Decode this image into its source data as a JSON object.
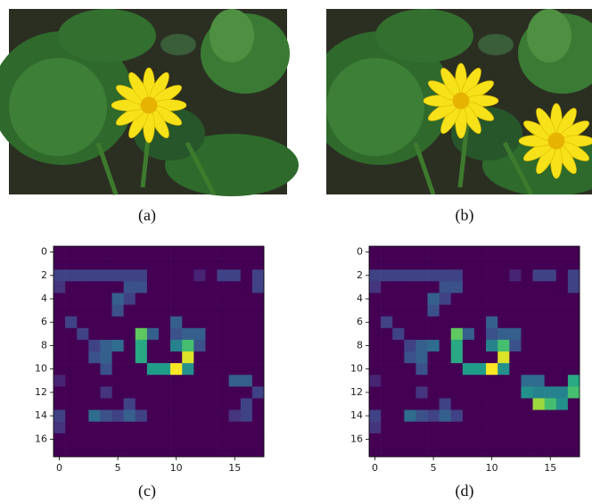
{
  "panels": [
    {
      "caption": "(a)"
    },
    {
      "caption": "(b)"
    },
    {
      "caption": "(c)"
    },
    {
      "caption": "(d)"
    }
  ],
  "chart_data": [
    {
      "type": "heatmap",
      "xlim": [
        -0.5,
        17.5
      ],
      "ylim": [
        17.5,
        -0.5
      ],
      "xticks": [
        0,
        5,
        10,
        15
      ],
      "yticks": [
        0,
        2,
        4,
        6,
        8,
        10,
        12,
        14,
        16
      ],
      "colormap": "viridis",
      "z": [
        [
          0,
          0,
          0,
          0,
          0,
          0,
          0,
          0,
          0,
          0,
          0,
          0,
          0,
          0,
          0,
          0,
          0,
          0
        ],
        [
          0,
          0,
          0,
          0,
          0,
          0,
          0,
          0,
          0,
          0,
          0,
          0,
          0,
          0,
          0,
          0,
          0,
          0
        ],
        [
          0.2,
          0.2,
          0.2,
          0.2,
          0.2,
          0.2,
          0.2,
          0.2,
          0,
          0,
          0,
          0,
          0.1,
          0,
          0.2,
          0.2,
          0,
          0.2
        ],
        [
          0.15,
          0,
          0,
          0,
          0,
          0,
          0.25,
          0.25,
          0,
          0,
          0,
          0,
          0,
          0,
          0,
          0,
          0,
          0.2
        ],
        [
          0,
          0,
          0,
          0,
          0,
          0.3,
          0.2,
          0,
          0,
          0,
          0,
          0,
          0,
          0,
          0,
          0,
          0,
          0
        ],
        [
          0,
          0,
          0,
          0,
          0,
          0.25,
          0,
          0,
          0,
          0,
          0,
          0,
          0,
          0,
          0,
          0,
          0,
          0
        ],
        [
          0,
          0.2,
          0,
          0,
          0,
          0,
          0,
          0,
          0,
          0,
          0.3,
          0,
          0,
          0,
          0,
          0,
          0,
          0
        ],
        [
          0,
          0,
          0.2,
          0,
          0,
          0,
          0,
          0.75,
          0.3,
          0,
          0.25,
          0.3,
          0.3,
          0,
          0,
          0,
          0,
          0
        ],
        [
          0,
          0,
          0,
          0.2,
          0.3,
          0.35,
          0,
          0.6,
          0,
          0,
          0.45,
          0.7,
          0.25,
          0,
          0,
          0,
          0,
          0
        ],
        [
          0,
          0,
          0,
          0.25,
          0.3,
          0,
          0,
          0.6,
          0,
          0,
          0,
          0.95,
          0,
          0,
          0,
          0,
          0,
          0
        ],
        [
          0,
          0,
          0,
          0,
          0.25,
          0,
          0,
          0,
          0.55,
          0.55,
          1,
          0.5,
          0,
          0,
          0,
          0,
          0,
          0
        ],
        [
          0.1,
          0,
          0,
          0,
          0,
          0,
          0,
          0,
          0,
          0,
          0,
          0,
          0,
          0,
          0,
          0.3,
          0.3,
          0
        ],
        [
          0,
          0,
          0,
          0,
          0.15,
          0,
          0,
          0,
          0,
          0,
          0,
          0,
          0,
          0,
          0,
          0,
          0,
          0.2
        ],
        [
          0,
          0,
          0,
          0,
          0,
          0,
          0.2,
          0,
          0,
          0,
          0,
          0,
          0,
          0,
          0,
          0,
          0.2,
          0
        ],
        [
          0.2,
          0,
          0,
          0.35,
          0.25,
          0.2,
          0.3,
          0.2,
          0,
          0,
          0,
          0,
          0,
          0,
          0,
          0.15,
          0.2,
          0
        ],
        [
          0.15,
          0,
          0,
          0,
          0,
          0,
          0,
          0,
          0,
          0,
          0,
          0,
          0,
          0,
          0,
          0,
          0,
          0
        ],
        [
          0,
          0,
          0,
          0,
          0,
          0,
          0,
          0,
          0,
          0,
          0,
          0,
          0,
          0,
          0,
          0,
          0,
          0
        ],
        [
          0,
          0,
          0,
          0,
          0,
          0,
          0,
          0,
          0,
          0,
          0,
          0,
          0,
          0,
          0,
          0,
          0,
          0
        ]
      ]
    },
    {
      "type": "heatmap",
      "xlim": [
        -0.5,
        17.5
      ],
      "ylim": [
        17.5,
        -0.5
      ],
      "xticks": [
        0,
        5,
        10,
        15
      ],
      "yticks": [
        0,
        2,
        4,
        6,
        8,
        10,
        12,
        14,
        16
      ],
      "colormap": "viridis",
      "z": [
        [
          0,
          0,
          0,
          0,
          0,
          0,
          0,
          0,
          0,
          0,
          0,
          0,
          0,
          0,
          0,
          0,
          0,
          0
        ],
        [
          0,
          0,
          0,
          0,
          0,
          0,
          0,
          0,
          0,
          0,
          0,
          0,
          0,
          0,
          0,
          0,
          0,
          0
        ],
        [
          0.2,
          0.2,
          0.2,
          0.2,
          0.2,
          0.2,
          0.2,
          0.2,
          0,
          0,
          0,
          0,
          0.1,
          0,
          0.2,
          0.2,
          0,
          0.2
        ],
        [
          0.15,
          0,
          0,
          0,
          0,
          0,
          0.25,
          0.25,
          0,
          0,
          0,
          0,
          0,
          0,
          0,
          0,
          0,
          0.2
        ],
        [
          0,
          0,
          0,
          0,
          0,
          0.3,
          0.2,
          0,
          0,
          0,
          0,
          0,
          0,
          0,
          0,
          0,
          0,
          0
        ],
        [
          0,
          0,
          0,
          0,
          0,
          0.25,
          0,
          0,
          0,
          0,
          0,
          0,
          0,
          0,
          0,
          0,
          0,
          0
        ],
        [
          0,
          0.2,
          0,
          0,
          0,
          0,
          0,
          0,
          0,
          0,
          0.3,
          0,
          0,
          0,
          0,
          0,
          0,
          0
        ],
        [
          0,
          0,
          0.2,
          0,
          0,
          0,
          0,
          0.75,
          0.3,
          0,
          0.25,
          0.3,
          0.3,
          0,
          0,
          0,
          0,
          0
        ],
        [
          0,
          0,
          0,
          0.2,
          0.3,
          0.35,
          0,
          0.6,
          0,
          0,
          0.45,
          0.7,
          0.25,
          0,
          0,
          0,
          0,
          0
        ],
        [
          0,
          0,
          0,
          0.25,
          0.3,
          0,
          0,
          0.6,
          0,
          0,
          0,
          0.95,
          0,
          0,
          0,
          0,
          0,
          0
        ],
        [
          0,
          0,
          0,
          0,
          0.25,
          0,
          0,
          0,
          0.55,
          0.55,
          1,
          0.5,
          0,
          0,
          0,
          0,
          0,
          0
        ],
        [
          0.1,
          0,
          0,
          0,
          0,
          0,
          0,
          0,
          0,
          0,
          0,
          0,
          0,
          0.35,
          0.35,
          0,
          0,
          0.6
        ],
        [
          0,
          0,
          0,
          0,
          0.15,
          0,
          0,
          0,
          0,
          0,
          0,
          0,
          0,
          0.5,
          0.45,
          0.45,
          0.45,
          0.7
        ],
        [
          0,
          0,
          0,
          0,
          0,
          0,
          0.2,
          0,
          0,
          0,
          0,
          0,
          0,
          0,
          0.85,
          0.7,
          0.5,
          0
        ],
        [
          0.2,
          0,
          0,
          0.35,
          0.25,
          0.2,
          0.3,
          0.2,
          0,
          0,
          0,
          0,
          0,
          0,
          0,
          0,
          0,
          0
        ],
        [
          0.15,
          0,
          0,
          0,
          0,
          0,
          0,
          0,
          0,
          0,
          0,
          0,
          0,
          0,
          0,
          0,
          0,
          0
        ],
        [
          0,
          0,
          0,
          0,
          0,
          0,
          0,
          0,
          0,
          0,
          0,
          0,
          0,
          0,
          0,
          0,
          0,
          0
        ],
        [
          0,
          0,
          0,
          0,
          0,
          0,
          0,
          0,
          0,
          0,
          0,
          0,
          0,
          0,
          0,
          0,
          0,
          0
        ]
      ]
    }
  ]
}
